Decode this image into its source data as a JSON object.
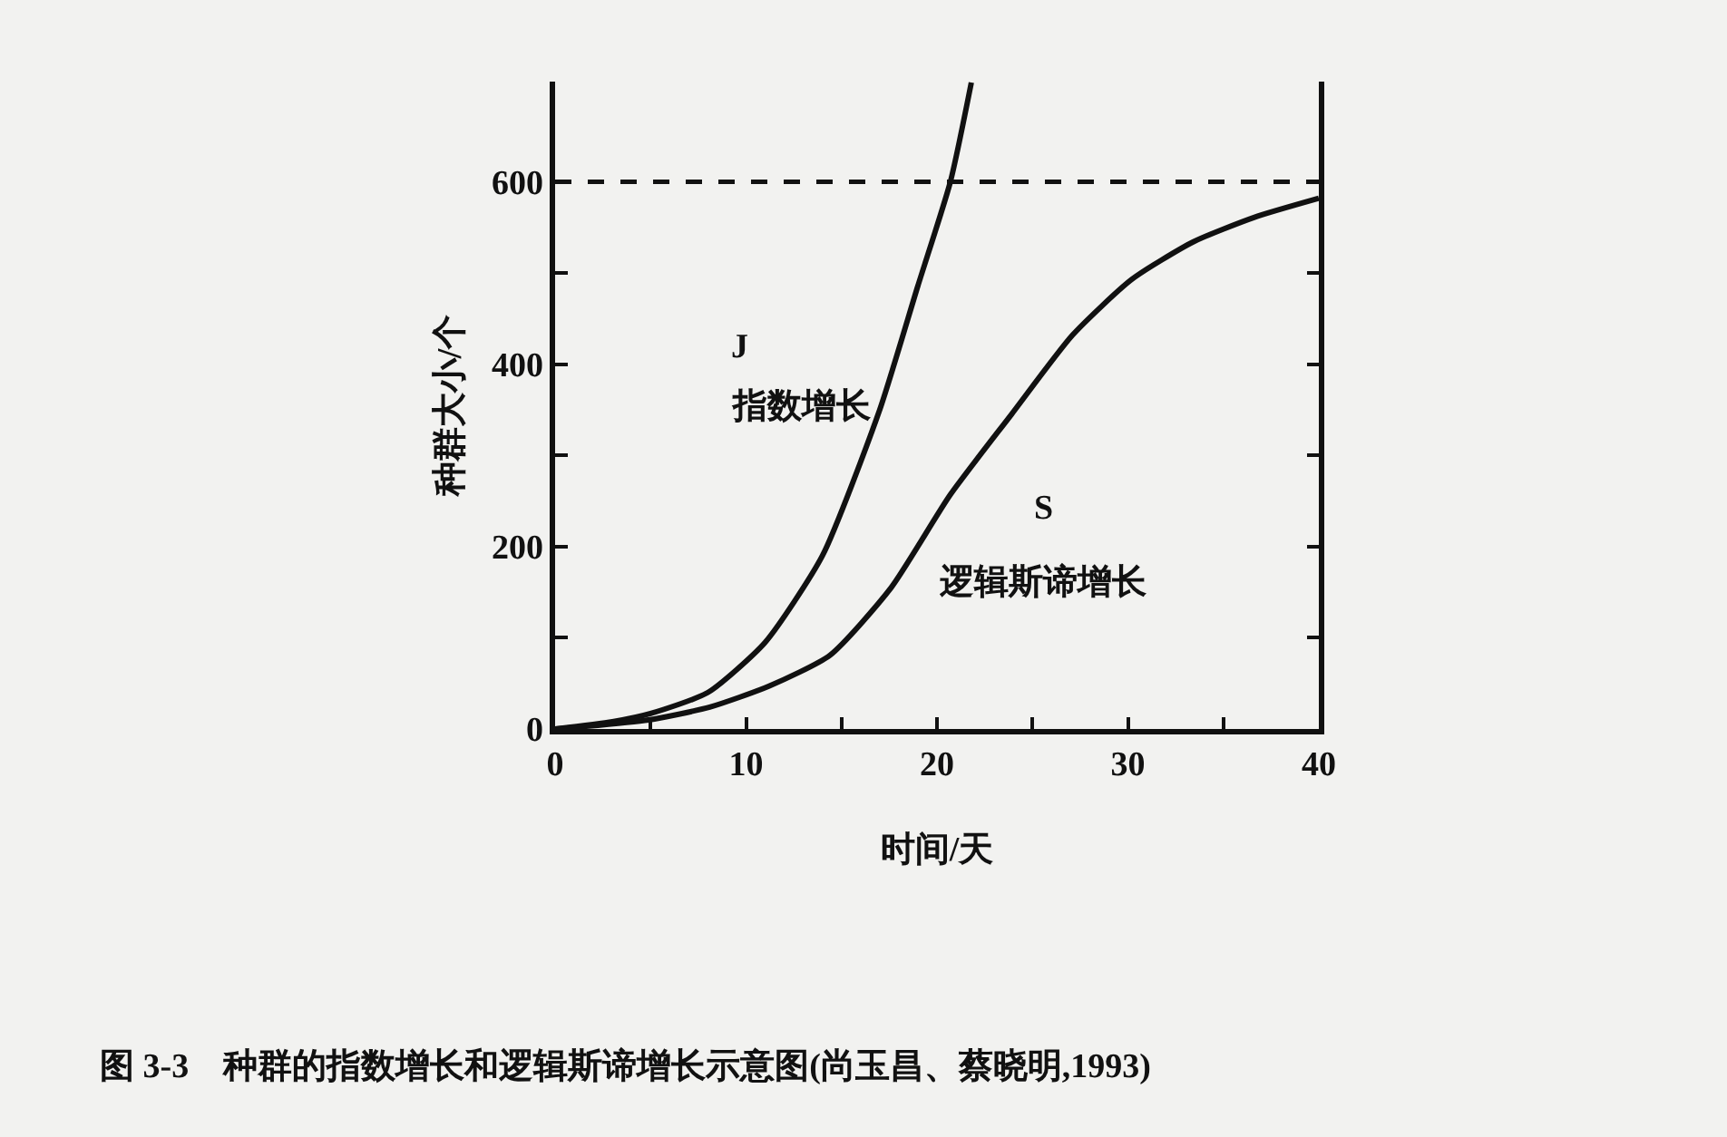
{
  "chart_data": {
    "type": "line",
    "xlabel": "时间/天",
    "ylabel": "种群大小/个",
    "series": [
      {
        "color": "#111111",
        "x": [
          0,
          3,
          5,
          8,
          11,
          14,
          17,
          19,
          20.7,
          21.8
        ],
        "values": [
          0,
          8,
          17,
          40,
          95,
          190,
          350,
          486,
          600,
          709
        ]
      },
      {
        "color": "#111111",
        "x": [
          0,
          4.9,
          8.1,
          11.2,
          14.4,
          17.6,
          20.7,
          23.9,
          27.1,
          30.2,
          33.4,
          36.6,
          40
        ],
        "values": [
          0,
          10,
          24,
          47,
          81,
          155,
          257,
          345,
          432,
          493,
          534,
          561,
          582
        ]
      }
    ],
    "xlim": [
      0,
      40
    ],
    "ylim": [
      0,
      710
    ],
    "xticks": [
      0,
      {
        "value": 5,
        "label": null
      },
      10,
      {
        "value": 15,
        "label": null
      },
      20,
      {
        "value": 25,
        "label": null
      },
      30,
      {
        "value": 35,
        "label": null
      },
      40
    ],
    "yticks": [
      0,
      {
        "value": 100,
        "label": null
      },
      200,
      {
        "value": 300,
        "label": null
      },
      400,
      {
        "value": 500,
        "label": null
      },
      600
    ],
    "ref_lines": [
      {
        "axis": "y",
        "value": 600,
        "line_style": "dashed",
        "color": "#111111"
      }
    ],
    "annotations": [
      "J",
      "指数增长",
      "S",
      "逻辑斯谛增长",
      "图 3-3　种群的指数增长和逻辑斯谛增长示意图(尚玉昌、蔡晓明,1993)"
    ],
    "grid": false,
    "marker": "none",
    "line_style": "solid"
  }
}
